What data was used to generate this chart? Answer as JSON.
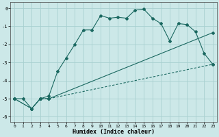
{
  "xlabel": "Humidex (Indice chaleur)",
  "bg_color": "#cce8e8",
  "grid_color": "#a8d0d0",
  "line_color": "#1a6860",
  "xlim": [
    -0.5,
    23.5
  ],
  "ylim": [
    -6.3,
    0.35
  ],
  "xticks": [
    0,
    1,
    2,
    3,
    4,
    5,
    6,
    7,
    8,
    9,
    10,
    11,
    12,
    13,
    14,
    15,
    16,
    17,
    18,
    19,
    20,
    21,
    22,
    23
  ],
  "yticks": [
    0,
    -1,
    -2,
    -3,
    -4,
    -5,
    -6
  ],
  "line1_x": [
    0,
    1,
    2,
    3,
    4,
    5,
    6,
    7,
    8,
    9,
    10,
    11,
    12,
    13,
    14,
    15,
    16,
    17,
    18,
    19,
    20,
    21,
    22,
    23
  ],
  "line1_y": [
    -5.0,
    -5.0,
    -5.55,
    -5.0,
    -4.85,
    -3.5,
    -2.75,
    -2.0,
    -1.2,
    -1.2,
    -0.4,
    -0.55,
    -0.5,
    -0.55,
    -0.1,
    -0.05,
    -0.55,
    -0.85,
    -1.8,
    -0.85,
    -0.9,
    -1.3,
    -2.5,
    -3.1
  ],
  "line2_x": [
    0,
    2,
    3,
    4,
    23
  ],
  "line2_y": [
    -5.0,
    -5.55,
    -5.0,
    -5.0,
    -3.1
  ],
  "line3_x": [
    0,
    2,
    3,
    4,
    23
  ],
  "line3_y": [
    -5.0,
    -5.55,
    -5.0,
    -5.0,
    -1.35
  ],
  "line1_solid": true,
  "line2_dashed": true,
  "line3_solid": true
}
